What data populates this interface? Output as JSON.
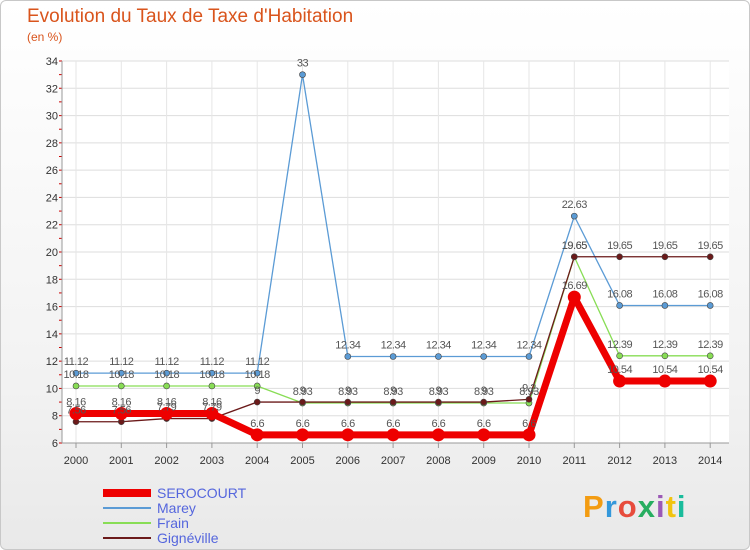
{
  "chart_data": {
    "type": "line",
    "title": "Evolution du Taux de Taxe d'Habitation",
    "subtitle": "(en %)",
    "categories": [
      "2000",
      "2001",
      "2002",
      "2003",
      "2004",
      "2005",
      "2006",
      "2007",
      "2008",
      "2009",
      "2010",
      "2011",
      "2012",
      "2013",
      "2014"
    ],
    "ylim": [
      6,
      34
    ],
    "yticks": [
      6,
      8,
      10,
      12,
      14,
      16,
      18,
      20,
      22,
      24,
      26,
      28,
      30,
      32,
      34
    ],
    "grid": true,
    "legend_position": "bottom-left",
    "series": [
      {
        "name": "SEROCOURT",
        "color": "#ee0000",
        "values": [
          8.16,
          8.16,
          8.16,
          8.16,
          6.6,
          6.6,
          6.6,
          6.6,
          6.6,
          6.6,
          6.6,
          16.69,
          10.54,
          10.54,
          10.54
        ],
        "labels": [
          "8.16",
          "8.16",
          "8.16",
          "8.16",
          "6.6",
          "6.6",
          "6.6",
          "6.6",
          "6.6",
          "6.6",
          "6.6",
          "16.69",
          "10.54",
          "10.54",
          "10.54"
        ]
      },
      {
        "name": "Marey",
        "color": "#5b9bd5",
        "values": [
          11.12,
          11.12,
          11.12,
          11.12,
          11.12,
          33,
          12.34,
          12.34,
          12.34,
          12.34,
          12.34,
          22.63,
          16.08,
          16.08,
          16.08
        ],
        "labels": [
          "11.12",
          "11.12",
          "11.12",
          "11.12",
          "11.12",
          "33",
          "12.34",
          "12.34",
          "12.34",
          "12.34",
          "12.34",
          "22.63",
          "16.08",
          "16.08",
          "16.08"
        ]
      },
      {
        "name": "Frain",
        "color": "#88dd55",
        "values": [
          10.18,
          10.18,
          10.18,
          10.18,
          10.18,
          8.93,
          8.93,
          8.93,
          8.93,
          8.93,
          8.93,
          19.65,
          12.39,
          12.39,
          12.39
        ],
        "labels": [
          "10.18",
          "10.18",
          "10.18",
          "10.18",
          "10.18",
          "8.93",
          "8.93",
          "8.93",
          "8.93",
          "8.93",
          "8.93",
          "19.65",
          "12.39",
          "12.39",
          "12.39"
        ]
      },
      {
        "name": "Gignéville",
        "color": "#6b1a1a",
        "values": [
          7.56,
          7.56,
          7.79,
          7.79,
          9,
          9,
          9,
          9,
          9,
          9,
          9.2,
          19.65,
          19.65,
          19.65,
          19.65
        ],
        "labels": [
          "7.56",
          "7.56",
          "7.79",
          "7.79",
          "9",
          "9",
          "9",
          "9",
          "9",
          "9",
          "9.2",
          "19.65",
          "19.65",
          "19.65",
          "19.65"
        ]
      }
    ]
  },
  "branding": {
    "logo_text": "Proxiti",
    "logo_colors": [
      "#f39c12",
      "#3498db",
      "#e74c3c",
      "#27ae60",
      "#9b59b6",
      "#f1c40f",
      "#1abc9c"
    ]
  }
}
